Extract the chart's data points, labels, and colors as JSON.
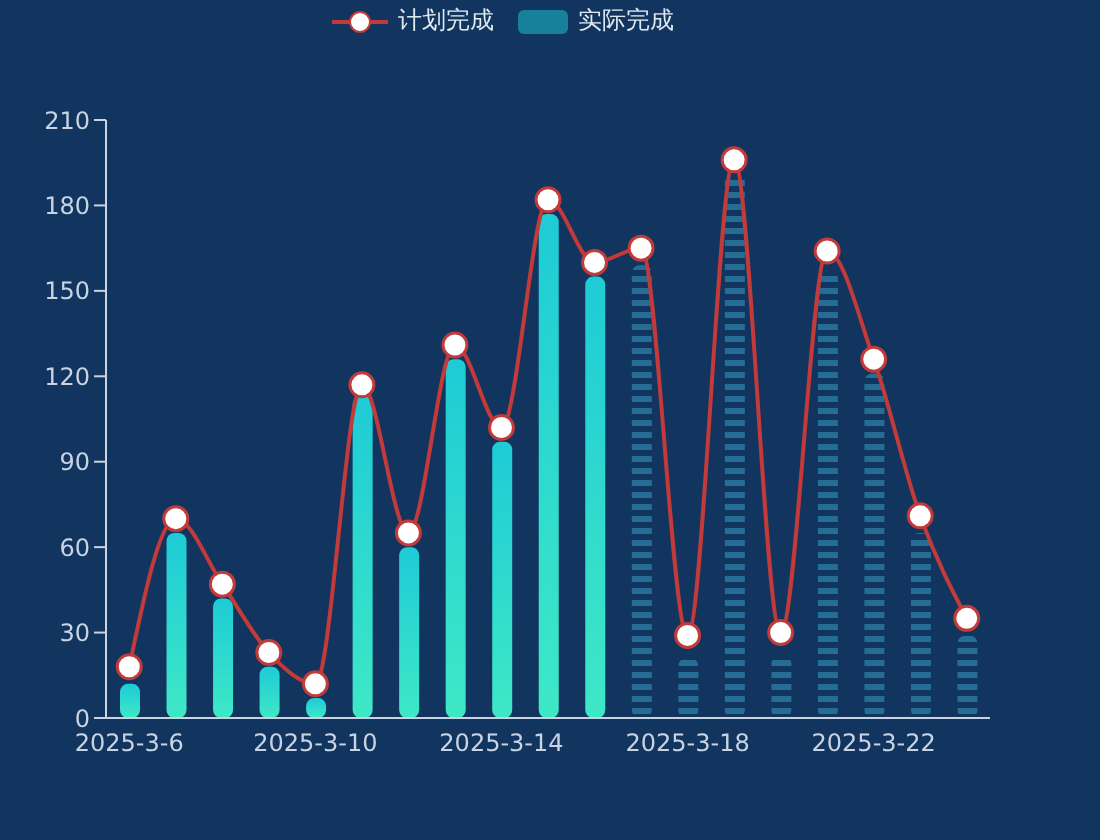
{
  "chart_data": {
    "type": "bar",
    "categories": [
      "2025-3-6",
      null,
      null,
      null,
      "2025-3-10",
      null,
      null,
      null,
      "2025-3-14",
      null,
      null,
      null,
      "2025-3-18",
      null,
      null,
      null,
      "2025-3-22",
      null,
      null
    ],
    "series": [
      {
        "name": "计划完成",
        "type": "line",
        "color": "#c23a3a",
        "values": [
          18,
          70,
          47,
          23,
          12,
          117,
          65,
          131,
          102,
          182,
          160,
          165,
          29,
          196,
          30,
          164,
          126,
          71,
          35
        ]
      },
      {
        "name": "实际完成",
        "color": "#1ecbd6",
        "colors": [
          "#1ecbd6",
          "#1ecbd6",
          "#1ecbd6",
          "#1ecbd6",
          "#1ecbd6",
          "#1ecbd6",
          "#1ecbd6",
          "#1ecbd6",
          "#1ecbd6",
          "#1ecbd6",
          "#1ecbd6",
          "#2b7aa3",
          "#2b7aa3",
          "#2b7aa3",
          "#2b7aa3",
          "#2b7aa3",
          "#2b7aa3",
          "#2b7aa3",
          "#2b7aa3"
        ],
        "values": [
          12,
          65,
          42,
          18,
          7,
          113,
          60,
          126,
          97,
          177,
          155,
          159,
          21,
          191,
          22,
          157,
          121,
          65,
          29
        ]
      }
    ],
    "ylim": [
      0,
      210
    ],
    "yticks": [
      0,
      30,
      60,
      90,
      120,
      150,
      180,
      210
    ],
    "grid": false,
    "legend": "top",
    "marker": "circle",
    "line_style": "solid"
  }
}
